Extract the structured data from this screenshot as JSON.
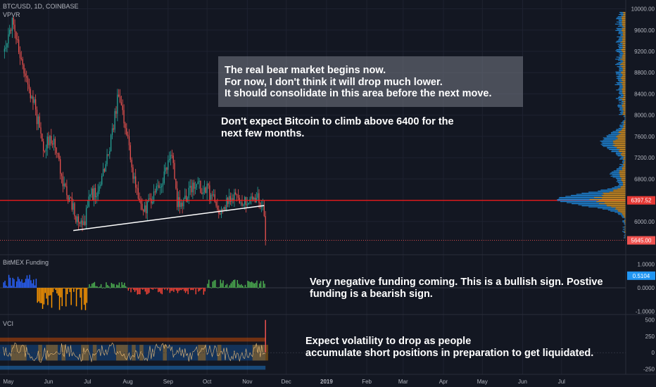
{
  "header": {
    "symbol": "BTC/USD, 1D, COINBASE",
    "indicator": "VPVR"
  },
  "panes": {
    "funding_label": "BitMEX Funding",
    "vci_label": "VCI"
  },
  "annotations": {
    "box_text": "The real bear market begins now.\nFor now, I don't think it will drop much lower.\nIt should consolidate in this area before the next move.",
    "price_note": "Don't expect Bitcoin to climb above 6400 for the\nnext few months.",
    "funding_note": "Very negative funding coming. This is a bullish sign. Postive\nfunding is a bearish sign.",
    "vci_note": "Expect volatility to drop as people\naccumulate short positions in preparation to get liquidated."
  },
  "colors": {
    "background": "#131722",
    "up": "#26a69a",
    "down": "#ef5350",
    "red_line": "#ff1a1a",
    "funding_pos_blue": "#2962ff",
    "funding_neg_orange": "#ff9800",
    "funding_pos_green": "#4caf50",
    "funding_neg_red": "#f44336",
    "vpvr_up": "#2196f3",
    "vpvr_down": "#f5a623"
  },
  "chart_data": [
    {
      "type": "candlestick",
      "title": "BTC/USD, 1D, COINBASE",
      "x_ticks": [
        "May",
        "Jun",
        "Jul",
        "Aug",
        "Sep",
        "Oct",
        "Nov",
        "Dec",
        "2019",
        "Feb",
        "Mar",
        "Apr",
        "May",
        "Jun",
        "Jul"
      ],
      "y_ticks": [
        6000,
        6400,
        6800,
        7200,
        7600,
        8000,
        8400,
        8800,
        9200,
        9600,
        10000
      ],
      "y_tick_labels": [
        "6000.00",
        "6400.00",
        "6800.00",
        "7200.00",
        "7600.00",
        "8000.00",
        "8400.00",
        "8800.00",
        "9200.00",
        "9600.00",
        "10000.00"
      ],
      "ylim": [
        5560,
        10060
      ],
      "price_labels": [
        {
          "value": 6397.52,
          "text": "6397.52"
        },
        {
          "value": 5645.0,
          "text": "5645.00"
        }
      ],
      "horizontal_line": 6397.52,
      "support_trendline": [
        {
          "date": "2018-06-20",
          "price": 5830
        },
        {
          "date": "2018-11-14",
          "price": 6300
        }
      ],
      "close_path": [
        {
          "date": "2018-04-27",
          "close": 9200
        },
        {
          "date": "2018-05-05",
          "close": 9800
        },
        {
          "date": "2018-05-10",
          "close": 9000
        },
        {
          "date": "2018-05-20",
          "close": 8300
        },
        {
          "date": "2018-05-28",
          "close": 7400
        },
        {
          "date": "2018-06-05",
          "close": 7600
        },
        {
          "date": "2018-06-12",
          "close": 6700
        },
        {
          "date": "2018-06-22",
          "close": 6100
        },
        {
          "date": "2018-06-29",
          "close": 6000
        },
        {
          "date": "2018-07-03",
          "close": 6500
        },
        {
          "date": "2018-07-10",
          "close": 6600
        },
        {
          "date": "2018-07-18",
          "close": 7400
        },
        {
          "date": "2018-07-25",
          "close": 8400
        },
        {
          "date": "2018-07-31",
          "close": 7700
        },
        {
          "date": "2018-08-07",
          "close": 6600
        },
        {
          "date": "2018-08-14",
          "close": 6200
        },
        {
          "date": "2018-08-22",
          "close": 6500
        },
        {
          "date": "2018-08-31",
          "close": 7000
        },
        {
          "date": "2018-09-04",
          "close": 7300
        },
        {
          "date": "2018-09-08",
          "close": 6300
        },
        {
          "date": "2018-09-15",
          "close": 6500
        },
        {
          "date": "2018-09-22",
          "close": 6700
        },
        {
          "date": "2018-10-01",
          "close": 6600
        },
        {
          "date": "2018-10-11",
          "close": 6200
        },
        {
          "date": "2018-10-20",
          "close": 6450
        },
        {
          "date": "2018-11-01",
          "close": 6350
        },
        {
          "date": "2018-11-07",
          "close": 6480
        },
        {
          "date": "2018-11-13",
          "close": 6350
        },
        {
          "date": "2018-11-15",
          "close": 5650
        }
      ],
      "volume_profile": "visible range volume profile on the right side, heaviest near 6400"
    },
    {
      "type": "bar",
      "title": "BitMEX Funding",
      "y_ticks": [
        -1.0,
        0.0,
        1.0
      ],
      "y_tick_labels": [
        "-1.0000",
        "0.0000",
        "1.0000"
      ],
      "ylim": [
        -1.1,
        1.1
      ],
      "current_value": 0.5104,
      "current_label": "0.5104",
      "segments": [
        {
          "from": "2018-04-27",
          "to": "2018-05-22",
          "sign": "positive",
          "color": "blue",
          "peak": 0.55
        },
        {
          "from": "2018-05-23",
          "to": "2018-06-30",
          "sign": "negative",
          "color": "orange",
          "peak": -0.95
        },
        {
          "from": "2018-07-01",
          "to": "2018-07-31",
          "sign": "positive",
          "color": "green",
          "peak": 0.25
        },
        {
          "from": "2018-08-01",
          "to": "2018-09-30",
          "sign": "negative",
          "color": "red",
          "peak": -0.3
        },
        {
          "from": "2018-10-01",
          "to": "2018-11-15",
          "sign": "positive",
          "color": "green",
          "peak": 0.35
        }
      ]
    },
    {
      "type": "line",
      "title": "VCI",
      "y_ticks": [
        -250,
        0,
        250,
        500
      ],
      "y_tick_labels": [
        "-250",
        "0",
        "250",
        "500"
      ],
      "ylim": [
        -320,
        540
      ],
      "description": "volatility oscillator with orange and blue bands, spike to 500 at the last bar"
    }
  ]
}
